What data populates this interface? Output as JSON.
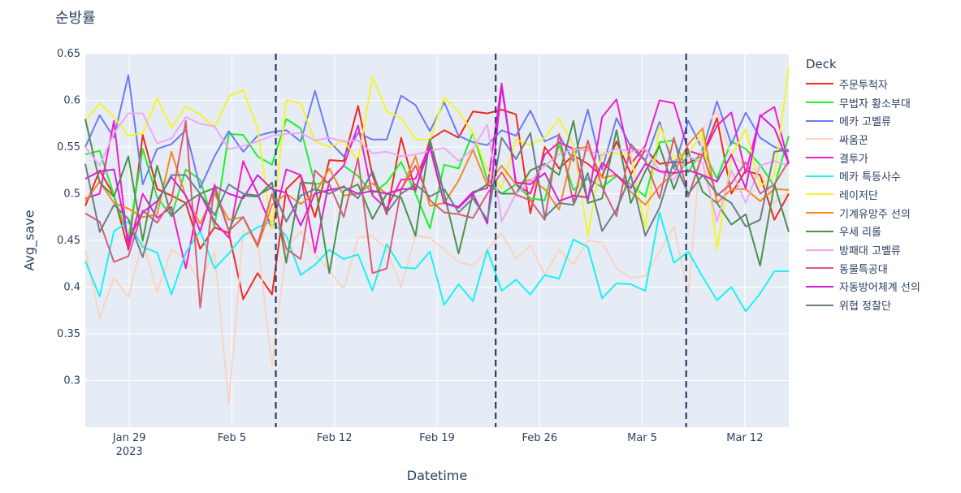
{
  "title": "순방률",
  "legend_title": "Deck",
  "chart_data": {
    "type": "line",
    "title": "순방률",
    "xlabel": "Datetime",
    "ylabel": "Avg_save",
    "x_start": "2023-01-26",
    "x_end": "2023-03-15",
    "x_ticks": [
      {
        "date": "2023-01-29",
        "label": "Jan 29",
        "sublabel": "2023"
      },
      {
        "date": "2023-02-05",
        "label": "Feb 5"
      },
      {
        "date": "2023-02-12",
        "label": "Feb 12"
      },
      {
        "date": "2023-02-19",
        "label": "Feb 19"
      },
      {
        "date": "2023-02-26",
        "label": "Feb 26"
      },
      {
        "date": "2023-03-05",
        "label": "Mar 5"
      },
      {
        "date": "2023-03-12",
        "label": "Mar 12"
      }
    ],
    "ylim": [
      0.25,
      0.65
    ],
    "y_ticks": [
      0.3,
      0.35,
      0.4,
      0.45,
      0.5,
      0.55,
      0.6,
      0.65
    ],
    "y_tick_labels": [
      "0.3",
      "0.35",
      "0.4",
      "0.45",
      "0.5",
      "0.55",
      "0.6",
      "0.65"
    ],
    "vlines": [
      "2023-02-08",
      "2023-02-23",
      "2023-03-08"
    ],
    "grid": true,
    "legend_position": "right",
    "plot_bgcolor": "#E5ECF6",
    "series": [
      {
        "name": "주문투척자",
        "color": "#F02A1E",
        "values": [
          0.487,
          0.525,
          0.498,
          0.44,
          0.563,
          0.505,
          0.498,
          0.49,
          0.441,
          0.464,
          0.458,
          0.387,
          0.415,
          0.392,
          0.505,
          0.52,
          0.475,
          0.536,
          0.535,
          0.594,
          0.52,
          0.478,
          0.56,
          0.503,
          0.558,
          0.568,
          0.56,
          0.588,
          0.586,
          0.59,
          0.585,
          0.479,
          0.55,
          0.527,
          0.541,
          0.532,
          0.519,
          0.556,
          0.521,
          0.547,
          0.532,
          0.534,
          0.533,
          0.541,
          0.581,
          0.5,
          0.525,
          0.52,
          0.472,
          0.5
        ]
      },
      {
        "name": "무법자 황소부대",
        "color": "#1EF02A",
        "values": [
          0.542,
          0.546,
          0.498,
          0.452,
          0.548,
          0.496,
          0.476,
          0.526,
          0.515,
          0.465,
          0.564,
          0.563,
          0.54,
          0.531,
          0.58,
          0.57,
          0.51,
          0.513,
          0.53,
          0.519,
          0.5,
          0.512,
          0.534,
          0.5,
          0.463,
          0.531,
          0.527,
          0.565,
          0.515,
          0.5,
          0.51,
          0.495,
          0.493,
          0.553,
          0.504,
          0.516,
          0.507,
          0.519,
          0.51,
          0.497,
          0.555,
          0.557,
          0.523,
          0.548,
          0.516,
          0.556,
          0.548,
          0.531,
          0.508,
          0.562
        ]
      },
      {
        "name": "메카 고벨류",
        "color": "#6C7CF0",
        "values": [
          0.55,
          0.584,
          0.56,
          0.627,
          0.51,
          0.548,
          0.553,
          0.568,
          0.506,
          0.54,
          0.567,
          0.545,
          0.562,
          0.566,
          0.568,
          0.556,
          0.61,
          0.556,
          0.54,
          0.565,
          0.558,
          0.558,
          0.605,
          0.595,
          0.567,
          0.598,
          0.562,
          0.555,
          0.552,
          0.568,
          0.562,
          0.589,
          0.556,
          0.563,
          0.535,
          0.59,
          0.526,
          0.581,
          0.55,
          0.535,
          0.577,
          0.527,
          0.578,
          0.547,
          0.599,
          0.553,
          0.587,
          0.56,
          0.55,
          0.545
        ]
      },
      {
        "name": "싸움꾼",
        "color": "#FAD4C0",
        "values": [
          0.44,
          0.367,
          0.41,
          0.389,
          0.45,
          0.395,
          0.44,
          0.43,
          0.405,
          0.438,
          0.275,
          0.46,
          0.45,
          0.316,
          0.44,
          0.46,
          0.435,
          0.418,
          0.398,
          0.453,
          0.455,
          0.44,
          0.4,
          0.455,
          0.453,
          0.44,
          0.427,
          0.423,
          0.44,
          0.458,
          0.43,
          0.445,
          0.413,
          0.44,
          0.424,
          0.45,
          0.448,
          0.42,
          0.41,
          0.412,
          0.438,
          0.465,
          0.392,
          0.57,
          0.588,
          0.54,
          0.53,
          0.523,
          0.49,
          0.502
        ]
      },
      {
        "name": "결투가",
        "color": "#F01EC8",
        "values": [
          0.495,
          0.5,
          0.578,
          0.44,
          0.5,
          0.474,
          0.486,
          0.42,
          0.5,
          0.47,
          0.453,
          0.535,
          0.5,
          0.463,
          0.526,
          0.52,
          0.437,
          0.514,
          0.53,
          0.573,
          0.498,
          0.484,
          0.515,
          0.516,
          0.552,
          0.49,
          0.486,
          0.502,
          0.506,
          0.618,
          0.51,
          0.5,
          0.542,
          0.555,
          0.548,
          0.492,
          0.582,
          0.601,
          0.532,
          0.551,
          0.6,
          0.597,
          0.546,
          0.541,
          0.573,
          0.587,
          0.522,
          0.583,
          0.593,
          0.532
        ]
      },
      {
        "name": "메카 특등사수",
        "color": "#1EF0F0",
        "values": [
          0.428,
          0.39,
          0.46,
          0.47,
          0.443,
          0.437,
          0.392,
          0.437,
          0.46,
          0.42,
          0.436,
          0.455,
          0.464,
          0.47,
          0.455,
          0.413,
          0.424,
          0.44,
          0.43,
          0.435,
          0.396,
          0.446,
          0.421,
          0.42,
          0.438,
          0.381,
          0.403,
          0.385,
          0.44,
          0.396,
          0.408,
          0.392,
          0.413,
          0.409,
          0.451,
          0.443,
          0.388,
          0.404,
          0.403,
          0.396,
          0.48,
          0.426,
          0.438,
          0.411,
          0.386,
          0.4,
          0.374,
          0.393,
          0.417,
          0.417
        ]
      },
      {
        "name": "레이저단",
        "color": "#F5F527",
        "values": [
          0.578,
          0.597,
          0.582,
          0.562,
          0.565,
          0.602,
          0.571,
          0.593,
          0.585,
          0.571,
          0.604,
          0.611,
          0.57,
          0.462,
          0.6,
          0.597,
          0.556,
          0.55,
          0.557,
          0.535,
          0.625,
          0.588,
          0.581,
          0.558,
          0.558,
          0.603,
          0.588,
          0.565,
          0.525,
          0.506,
          0.558,
          0.552,
          0.56,
          0.58,
          0.552,
          0.455,
          0.544,
          0.543,
          0.541,
          0.463,
          0.573,
          0.537,
          0.543,
          0.565,
          0.44,
          0.54,
          0.569,
          0.508,
          0.52,
          0.635
        ]
      },
      {
        "name": "기계유망주 선의",
        "color": "#F58A1E",
        "values": [
          0.492,
          0.513,
          0.49,
          0.484,
          0.475,
          0.478,
          0.545,
          0.497,
          0.468,
          0.5,
          0.472,
          0.475,
          0.443,
          0.488,
          0.5,
          0.489,
          0.5,
          0.527,
          0.498,
          0.5,
          0.511,
          0.5,
          0.504,
          0.54,
          0.487,
          0.49,
          0.514,
          0.547,
          0.509,
          0.53,
          0.51,
          0.515,
          0.505,
          0.483,
          0.548,
          0.55,
          0.517,
          0.52,
          0.502,
          0.488,
          0.508,
          0.522,
          0.553,
          0.57,
          0.49,
          0.505,
          0.505,
          0.492,
          0.505,
          0.504
        ]
      },
      {
        "name": "우세 리롤",
        "color": "#4D8F4D",
        "values": [
          0.58,
          0.512,
          0.497,
          0.54,
          0.45,
          0.53,
          0.476,
          0.49,
          0.5,
          0.506,
          0.46,
          0.498,
          0.497,
          0.512,
          0.426,
          0.512,
          0.511,
          0.415,
          0.503,
          0.51,
          0.473,
          0.5,
          0.496,
          0.455,
          0.558,
          0.5,
          0.436,
          0.5,
          0.51,
          0.5,
          0.5,
          0.525,
          0.532,
          0.52,
          0.578,
          0.49,
          0.495,
          0.568,
          0.49,
          0.524,
          0.551,
          0.505,
          0.545,
          0.502,
          0.49,
          0.467,
          0.478,
          0.423,
          0.51,
          0.459
        ]
      },
      {
        "name": "방패대 고벨류",
        "color": "#F0A8F0",
        "values": [
          0.55,
          0.53,
          0.565,
          0.586,
          0.586,
          0.554,
          0.559,
          0.582,
          0.575,
          0.572,
          0.548,
          0.551,
          0.556,
          0.562,
          0.564,
          0.565,
          0.557,
          0.56,
          0.556,
          0.557,
          0.543,
          0.545,
          0.54,
          0.542,
          0.546,
          0.549,
          0.535,
          0.548,
          0.574,
          0.47,
          0.5,
          0.513,
          0.53,
          0.542,
          0.548,
          0.546,
          0.541,
          0.548,
          0.545,
          0.548,
          0.524,
          0.515,
          0.54,
          0.533,
          0.47,
          0.525,
          0.49,
          0.53,
          0.535,
          0.53
        ]
      },
      {
        "name": "동물특공대",
        "color": "#D95C74",
        "values": [
          0.479,
          0.47,
          0.427,
          0.433,
          0.482,
          0.469,
          0.492,
          0.578,
          0.378,
          0.51,
          0.46,
          0.475,
          0.445,
          0.5,
          0.441,
          0.43,
          0.525,
          0.51,
          0.475,
          0.538,
          0.415,
          0.42,
          0.505,
          0.53,
          0.493,
          0.48,
          0.478,
          0.474,
          0.5,
          0.523,
          0.499,
          0.493,
          0.472,
          0.564,
          0.49,
          0.557,
          0.507,
          0.476,
          0.553,
          0.536,
          0.495,
          0.56,
          0.497,
          0.543,
          0.498,
          0.511,
          0.534,
          0.5,
          0.51,
          0.535
        ]
      },
      {
        "name": "자동방어체계 선의",
        "color": "#D81ED8",
        "values": [
          0.516,
          0.524,
          0.526,
          0.45,
          0.48,
          0.492,
          0.518,
          0.498,
          0.46,
          0.508,
          0.5,
          0.495,
          0.52,
          0.505,
          0.501,
          0.466,
          0.5,
          0.504,
          0.507,
          0.5,
          0.503,
          0.5,
          0.505,
          0.505,
          0.55,
          0.49,
          0.485,
          0.5,
          0.468,
          0.615,
          0.512,
          0.51,
          0.522,
          0.492,
          0.498,
          0.496,
          0.533,
          0.52,
          0.506,
          0.532,
          0.524,
          0.522,
          0.525,
          0.52,
          0.513,
          0.542,
          0.506,
          0.584,
          0.57,
          0.532
        ]
      },
      {
        "name": "위협 정찰단",
        "color": "#6B7F89",
        "values": [
          0.532,
          0.459,
          0.488,
          0.473,
          0.432,
          0.49,
          0.52,
          0.52,
          0.5,
          0.477,
          0.51,
          0.5,
          0.498,
          0.507,
          0.47,
          0.498,
          0.505,
          0.5,
          0.508,
          0.495,
          0.524,
          0.48,
          0.5,
          0.51,
          0.497,
          0.505,
          0.48,
          0.495,
          0.472,
          0.56,
          0.537,
          0.565,
          0.475,
          0.49,
          0.488,
          0.522,
          0.46,
          0.483,
          0.52,
          0.455,
          0.485,
          0.535,
          0.5,
          0.52,
          0.5,
          0.49,
          0.465,
          0.472,
          0.545,
          0.547
        ]
      }
    ]
  }
}
